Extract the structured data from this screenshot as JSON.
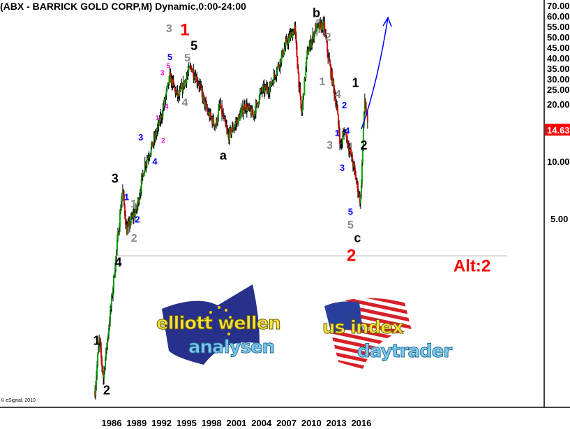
{
  "title": "(ABX - BARRICK GOLD CORP,M) Dynamic,0:00-24:00",
  "copyright": "© eSignal, 2010",
  "logos": [
    {
      "line1": "elliott wellen",
      "line2": "analysen"
    },
    {
      "line1": "us index",
      "line2": "daytrader"
    }
  ],
  "chart_data": {
    "type": "candlestick",
    "title": "(ABX - BARRICK GOLD CORP,M) Dynamic,0:00-24:00",
    "y_scale": "log",
    "grid": false,
    "x_ticks": [
      "1986",
      "1989",
      "1992",
      "1995",
      "1998",
      "2001",
      "2004",
      "2007",
      "2010",
      "2013",
      "2016"
    ],
    "y_ticks": [
      "70.00",
      "60.00",
      "55.00",
      "50.00",
      "45.00",
      "40.00",
      "35.00",
      "30.00",
      "25.00",
      "20.00",
      "10.00",
      "5.00"
    ],
    "last_price": "14.63",
    "last_price_color": "#ff0000",
    "up_color": "#00a000",
    "down_color": "#e00000",
    "price_path": [
      [
        1984.0,
        0.62
      ],
      [
        1984.5,
        1.16
      ],
      [
        1985.0,
        0.73
      ],
      [
        1986.0,
        1.86
      ],
      [
        1986.5,
        3.1
      ],
      [
        1987.3,
        7.2
      ],
      [
        1987.8,
        4.3
      ],
      [
        1988.5,
        5.1
      ],
      [
        1989.0,
        5.6
      ],
      [
        1990.0,
        9.7
      ],
      [
        1991.0,
        12.5
      ],
      [
        1992.0,
        17.5
      ],
      [
        1993.0,
        27.8
      ],
      [
        1994.0,
        21.6
      ],
      [
        1995.5,
        31.6
      ],
      [
        1996.5,
        25.6
      ],
      [
        1997.5,
        18.2
      ],
      [
        1998.5,
        15.4
      ],
      [
        1999.0,
        19.8
      ],
      [
        2000.0,
        13.6
      ],
      [
        2001.0,
        16.0
      ],
      [
        2002.0,
        19.8
      ],
      [
        2003.0,
        17.5
      ],
      [
        2004.0,
        23.5
      ],
      [
        2005.0,
        24.5
      ],
      [
        2006.0,
        31.6
      ],
      [
        2007.0,
        42.0
      ],
      [
        2008.0,
        50.0
      ],
      [
        2008.8,
        17.5
      ],
      [
        2009.5,
        37.0
      ],
      [
        2010.5,
        50.0
      ],
      [
        2011.5,
        52.0
      ],
      [
        2012.0,
        36.0
      ],
      [
        2013.0,
        20.0
      ],
      [
        2013.5,
        12.0
      ],
      [
        2014.0,
        14.7
      ],
      [
        2015.0,
        9.7
      ],
      [
        2015.9,
        6.1
      ],
      [
        2016.4,
        21.6
      ],
      [
        2016.8,
        14.63
      ]
    ],
    "horizontal_line": {
      "price": 3.19,
      "from": 1986.4,
      "to": 2033.5
    },
    "projection_arrow": {
      "from": [
        2016.0,
        14.8
      ],
      "to": [
        2019.2,
        57
      ],
      "color": "#0000ff"
    },
    "wave_colors": {
      "black": "#000000",
      "gray": "#888888",
      "blue": "#0000ff",
      "magenta": "#ff00ff",
      "red": "#ff0000"
    },
    "annotations": [
      {
        "text": "1",
        "color": "red",
        "size": "xl",
        "x": 1994.8,
        "y": 49.4
      },
      {
        "text": "5",
        "color": "black",
        "size": "l",
        "x": 1994.9,
        "y": 40.6
      },
      {
        "text": "3",
        "color": "gray",
        "size": "m",
        "x": 1992.9,
        "y": 50.2
      },
      {
        "text": "5",
        "color": "blue",
        "size": "s",
        "x": 1993.0,
        "y": 35.5
      },
      {
        "text": "5",
        "color": "magenta",
        "size": "xs",
        "x": 1992.8,
        "y": 31.8
      },
      {
        "text": "3",
        "color": "magenta",
        "size": "xs",
        "x": 1992.1,
        "y": 29.3
      },
      {
        "text": "5",
        "color": "gray",
        "size": "m",
        "x": 1995.1,
        "y": 35.2
      },
      {
        "text": "4",
        "color": "magenta",
        "size": "xs",
        "x": 1992.6,
        "y": 19.5
      },
      {
        "text": "4",
        "color": "gray",
        "size": "m",
        "x": 1994.8,
        "y": 20.5
      },
      {
        "text": "1",
        "color": "magenta",
        "size": "xs",
        "x": 1991.5,
        "y": 17.0
      },
      {
        "text": "2",
        "color": "magenta",
        "size": "xs",
        "x": 1992.2,
        "y": 12.9
      },
      {
        "text": "3",
        "color": "blue",
        "size": "s",
        "x": 1989.5,
        "y": 13.4
      },
      {
        "text": "4",
        "color": "blue",
        "size": "s",
        "x": 1991.2,
        "y": 10.0
      },
      {
        "text": "3",
        "color": "black",
        "size": "l",
        "x": 1986.4,
        "y": 8.16
      },
      {
        "text": "1",
        "color": "blue",
        "size": "s",
        "x": 1987.8,
        "y": 6.5
      },
      {
        "text": "1",
        "color": "gray",
        "size": "m",
        "x": 1987.3,
        "y": 6.0
      },
      {
        "text": "2",
        "color": "blue",
        "size": "s",
        "x": 1989.1,
        "y": 4.96
      },
      {
        "text": "2",
        "color": "gray",
        "size": "m",
        "x": 1988.7,
        "y": 3.98
      },
      {
        "text": "4",
        "color": "black",
        "size": "l",
        "x": 1986.8,
        "y": 2.96
      },
      {
        "text": "1",
        "color": "black",
        "size": "l",
        "x": 1984.2,
        "y": 1.15
      },
      {
        "text": "2",
        "color": "black",
        "size": "l",
        "x": 1985.4,
        "y": 0.63
      },
      {
        "text": "a",
        "color": "black",
        "size": "l",
        "x": 1999.4,
        "y": 10.8
      },
      {
        "text": "b",
        "color": "black",
        "size": "l",
        "x": 2010.6,
        "y": 60.5
      },
      {
        "text": "2",
        "color": "gray",
        "size": "m",
        "x": 2012.0,
        "y": 45.4
      },
      {
        "text": "1",
        "color": "gray",
        "size": "m",
        "x": 2011.3,
        "y": 26.4
      },
      {
        "text": "4",
        "color": "gray",
        "size": "m",
        "x": 2013.2,
        "y": 22.7
      },
      {
        "text": "2",
        "color": "blue",
        "size": "s",
        "x": 2013.8,
        "y": 19.8
      },
      {
        "text": "1",
        "color": "blue",
        "size": "s",
        "x": 2013.1,
        "y": 14.1
      },
      {
        "text": "4",
        "color": "blue",
        "size": "s",
        "x": 2014.3,
        "y": 14.5
      },
      {
        "text": "3",
        "color": "gray",
        "size": "m",
        "x": 2012.2,
        "y": 12.2
      },
      {
        "text": "3",
        "color": "blue",
        "size": "s",
        "x": 2013.7,
        "y": 9.27
      },
      {
        "text": "5",
        "color": "blue",
        "size": "s",
        "x": 2014.7,
        "y": 5.44
      },
      {
        "text": "5",
        "color": "gray",
        "size": "m",
        "x": 2014.7,
        "y": 4.67
      },
      {
        "text": "c",
        "color": "black",
        "size": "l",
        "x": 2014.7,
        "y": 3.98
      },
      {
        "text": "2",
        "color": "red",
        "size": "xl",
        "x": 2014.8,
        "y": 3.22
      },
      {
        "text": "1",
        "color": "black",
        "size": "l",
        "x": 2015.3,
        "y": 26.0
      },
      {
        "text": "2",
        "color": "black",
        "size": "l",
        "x": 2016.3,
        "y": 12.2
      },
      {
        "text": "Alt:2",
        "color": "red",
        "size": "xl",
        "x": 2029.3,
        "y": 2.84
      }
    ]
  }
}
